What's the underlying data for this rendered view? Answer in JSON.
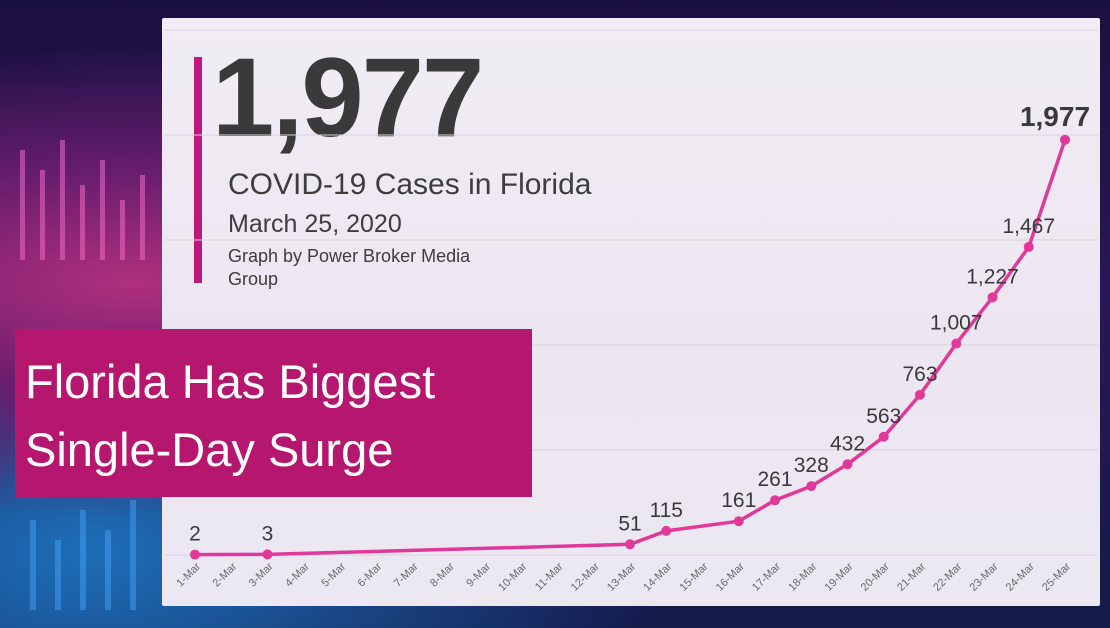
{
  "headline_number": "1,977",
  "title": "COVID-19 Cases in Florida",
  "date": "March 25, 2020",
  "credit": "Graph by Power Broker Media Group",
  "banner": {
    "line1": "Florida Has Biggest",
    "line2": "Single-Day Surge"
  },
  "colors": {
    "line": "#e0399a",
    "accent": "#c0177f",
    "banner": "#b5176f",
    "text": "#3a3a3a"
  },
  "chart_data": {
    "type": "line",
    "categories": [
      "1-Mar",
      "2-Mar",
      "3-Mar",
      "4-Mar",
      "5-Mar",
      "6-Mar",
      "7-Mar",
      "8-Mar",
      "9-Mar",
      "10-Mar",
      "11-Mar",
      "12-Mar",
      "13-Mar",
      "14-Mar",
      "15-Mar",
      "16-Mar",
      "17-Mar",
      "18-Mar",
      "19-Mar",
      "20-Mar",
      "21-Mar",
      "22-Mar",
      "23-Mar",
      "24-Mar",
      "25-Mar"
    ],
    "series": [
      {
        "points": [
          {
            "x": "1-Mar",
            "y": 2,
            "label": "2"
          },
          {
            "x": "3-Mar",
            "y": 3,
            "label": "3"
          },
          {
            "x": "13-Mar",
            "y": 51,
            "label": "51"
          },
          {
            "x": "14-Mar",
            "y": 115,
            "label": "115"
          },
          {
            "x": "16-Mar",
            "y": 161,
            "label": "161"
          },
          {
            "x": "17-Mar",
            "y": 261,
            "label": "261"
          },
          {
            "x": "18-Mar",
            "y": 328,
            "label": "328"
          },
          {
            "x": "19-Mar",
            "y": 432,
            "label": "432"
          },
          {
            "x": "20-Mar",
            "y": 563,
            "label": "563"
          },
          {
            "x": "21-Mar",
            "y": 763,
            "label": "763"
          },
          {
            "x": "22-Mar",
            "y": 1007,
            "label": "1,007"
          },
          {
            "x": "23-Mar",
            "y": 1227,
            "label": "1,227"
          },
          {
            "x": "24-Mar",
            "y": 1467,
            "label": "1,467"
          },
          {
            "x": "25-Mar",
            "y": 1977,
            "label": "1,977"
          }
        ]
      }
    ],
    "ylim": [
      0,
      2500
    ],
    "grid": true
  }
}
